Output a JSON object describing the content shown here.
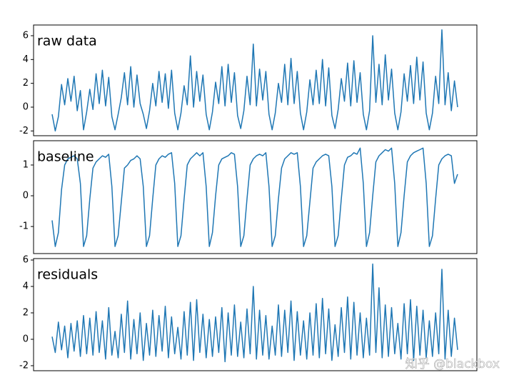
{
  "chart_data": [
    {
      "type": "line",
      "title": "raw data",
      "color": "#1f77b4",
      "ylim": [
        -2.4,
        6.9
      ],
      "yticks": [
        -2,
        0,
        2,
        4,
        6
      ],
      "values": [
        -0.6,
        -2.0,
        -0.8,
        1.9,
        0.2,
        2.4,
        0.5,
        2.6,
        -0.3,
        1.4,
        -1.9,
        -0.4,
        1.5,
        -0.2,
        2.8,
        0.3,
        3.1,
        0.1,
        2.5,
        -0.8,
        -1.9,
        -0.6,
        0.8,
        2.9,
        0.2,
        3.4,
        0.0,
        2.7,
        0.3,
        -0.6,
        -1.8,
        -0.3,
        2.0,
        0.1,
        3.0,
        0.4,
        2.8,
        -0.1,
        3.1,
        -0.5,
        -1.9,
        -0.5,
        1.8,
        0.2,
        4.3,
        0.0,
        3.0,
        0.5,
        2.7,
        -0.6,
        -1.9,
        -0.4,
        2.1,
        0.3,
        3.4,
        0.1,
        3.6,
        0.4,
        2.9,
        -0.7,
        -1.8,
        -0.3,
        2.6,
        0.2,
        5.3,
        0.1,
        3.2,
        0.6,
        3.0,
        -0.6,
        -1.9,
        -0.5,
        2.0,
        0.4,
        3.6,
        0.2,
        4.1,
        0.3,
        3.0,
        -0.5,
        -1.9,
        -0.4,
        2.3,
        0.2,
        3.1,
        0.3,
        4.0,
        0.1,
        3.3,
        -0.7,
        -1.8,
        -0.2,
        2.4,
        0.5,
        3.7,
        0.1,
        3.9,
        0.4,
        2.9,
        -0.6,
        -1.9,
        -0.3,
        6.0,
        0.4,
        3.6,
        0.2,
        4.4,
        0.6,
        3.2,
        -0.5,
        -1.9,
        -0.4,
        2.8,
        0.5,
        3.5,
        0.3,
        4.2,
        0.6,
        3.8,
        -0.5,
        -1.9,
        -0.5,
        2.6,
        0.3,
        6.5,
        0.2,
        2.9,
        -0.3,
        2.2,
        0.0
      ]
    },
    {
      "type": "line",
      "title": "baseline",
      "color": "#1f77b4",
      "ylim": [
        -1.88,
        1.79
      ],
      "yticks": [
        -1,
        0,
        1
      ],
      "values": [
        -0.8,
        -1.65,
        -1.2,
        0.2,
        1.0,
        1.2,
        1.25,
        1.3,
        1.2,
        0.4,
        -1.65,
        -1.3,
        -0.1,
        0.9,
        1.1,
        1.2,
        1.3,
        1.25,
        1.35,
        0.3,
        -1.65,
        -1.3,
        -0.2,
        0.9,
        1.0,
        1.15,
        1.2,
        1.3,
        1.2,
        0.3,
        -1.65,
        -1.3,
        -0.1,
        1.0,
        1.2,
        1.3,
        1.25,
        1.35,
        1.4,
        0.4,
        -1.65,
        -1.3,
        -0.1,
        1.0,
        1.2,
        1.3,
        1.4,
        1.3,
        1.4,
        0.3,
        -1.65,
        -1.2,
        0.0,
        1.0,
        1.2,
        1.25,
        1.3,
        1.4,
        1.35,
        0.3,
        -1.65,
        -1.3,
        -0.1,
        1.0,
        1.2,
        1.3,
        1.35,
        1.3,
        1.4,
        0.3,
        -1.65,
        -1.3,
        -0.1,
        0.9,
        1.2,
        1.3,
        1.4,
        1.35,
        1.4,
        0.3,
        -1.65,
        -1.3,
        -0.2,
        0.9,
        1.1,
        1.2,
        1.3,
        1.35,
        1.3,
        0.3,
        -1.65,
        -1.3,
        -0.1,
        1.0,
        1.25,
        1.3,
        1.4,
        1.35,
        1.55,
        0.4,
        -1.65,
        -1.2,
        0.0,
        1.1,
        1.3,
        1.4,
        1.5,
        1.45,
        1.55,
        0.4,
        -1.65,
        -1.2,
        0.0,
        1.1,
        1.3,
        1.4,
        1.45,
        1.5,
        1.55,
        0.4,
        -1.65,
        -1.3,
        -0.1,
        1.0,
        1.2,
        1.3,
        1.35,
        1.3,
        0.4,
        0.7
      ]
    },
    {
      "type": "line",
      "title": "residuals",
      "color": "#1f77b4",
      "ylim": [
        -2.38,
        6.11
      ],
      "yticks": [
        -2,
        0,
        2,
        4,
        6
      ],
      "values": [
        0.2,
        -1.0,
        1.3,
        -0.8,
        1.0,
        -1.4,
        1.2,
        -0.9,
        1.4,
        -1.3,
        1.8,
        -1.1,
        1.6,
        -1.2,
        2.1,
        -1.0,
        1.4,
        -1.5,
        2.4,
        -1.2,
        0.6,
        -1.4,
        1.9,
        -1.0,
        2.9,
        -1.5,
        1.5,
        -1.1,
        2.0,
        -1.6,
        1.2,
        -1.2,
        2.2,
        -1.3,
        1.8,
        -0.9,
        2.5,
        -1.4,
        1.7,
        -1.1,
        0.9,
        -1.5,
        2.1,
        -1.2,
        2.8,
        -1.6,
        3.0,
        -1.0,
        1.9,
        -1.4,
        1.5,
        -1.3,
        1.7,
        -1.0,
        2.4,
        -1.7,
        2.0,
        -1.2,
        2.6,
        -1.3,
        1.3,
        -1.4,
        2.3,
        -1.1,
        4.0,
        -1.5,
        2.2,
        -1.2,
        1.8,
        -1.5,
        1.0,
        -1.2,
        2.6,
        -1.3,
        2.2,
        -1.0,
        2.9,
        -1.6,
        2.1,
        -1.2,
        1.4,
        -1.5,
        2.0,
        -1.2,
        2.7,
        -1.4,
        3.1,
        -1.1,
        2.3,
        -1.6,
        1.1,
        -1.3,
        2.4,
        -1.0,
        3.2,
        -1.5,
        2.8,
        -1.2,
        2.0,
        -1.4,
        1.6,
        -1.2,
        5.7,
        -1.0,
        3.9,
        -1.4,
        2.6,
        -1.3,
        2.4,
        -1.1,
        1.2,
        -1.5,
        2.7,
        -1.1,
        3.0,
        -1.6,
        2.5,
        -1.2,
        2.2,
        -1.4,
        1.4,
        -1.3,
        2.0,
        -1.1,
        5.3,
        -1.5,
        2.2,
        -1.3,
        1.6,
        -0.8
      ]
    }
  ],
  "watermark": "知乎 @blackbox"
}
